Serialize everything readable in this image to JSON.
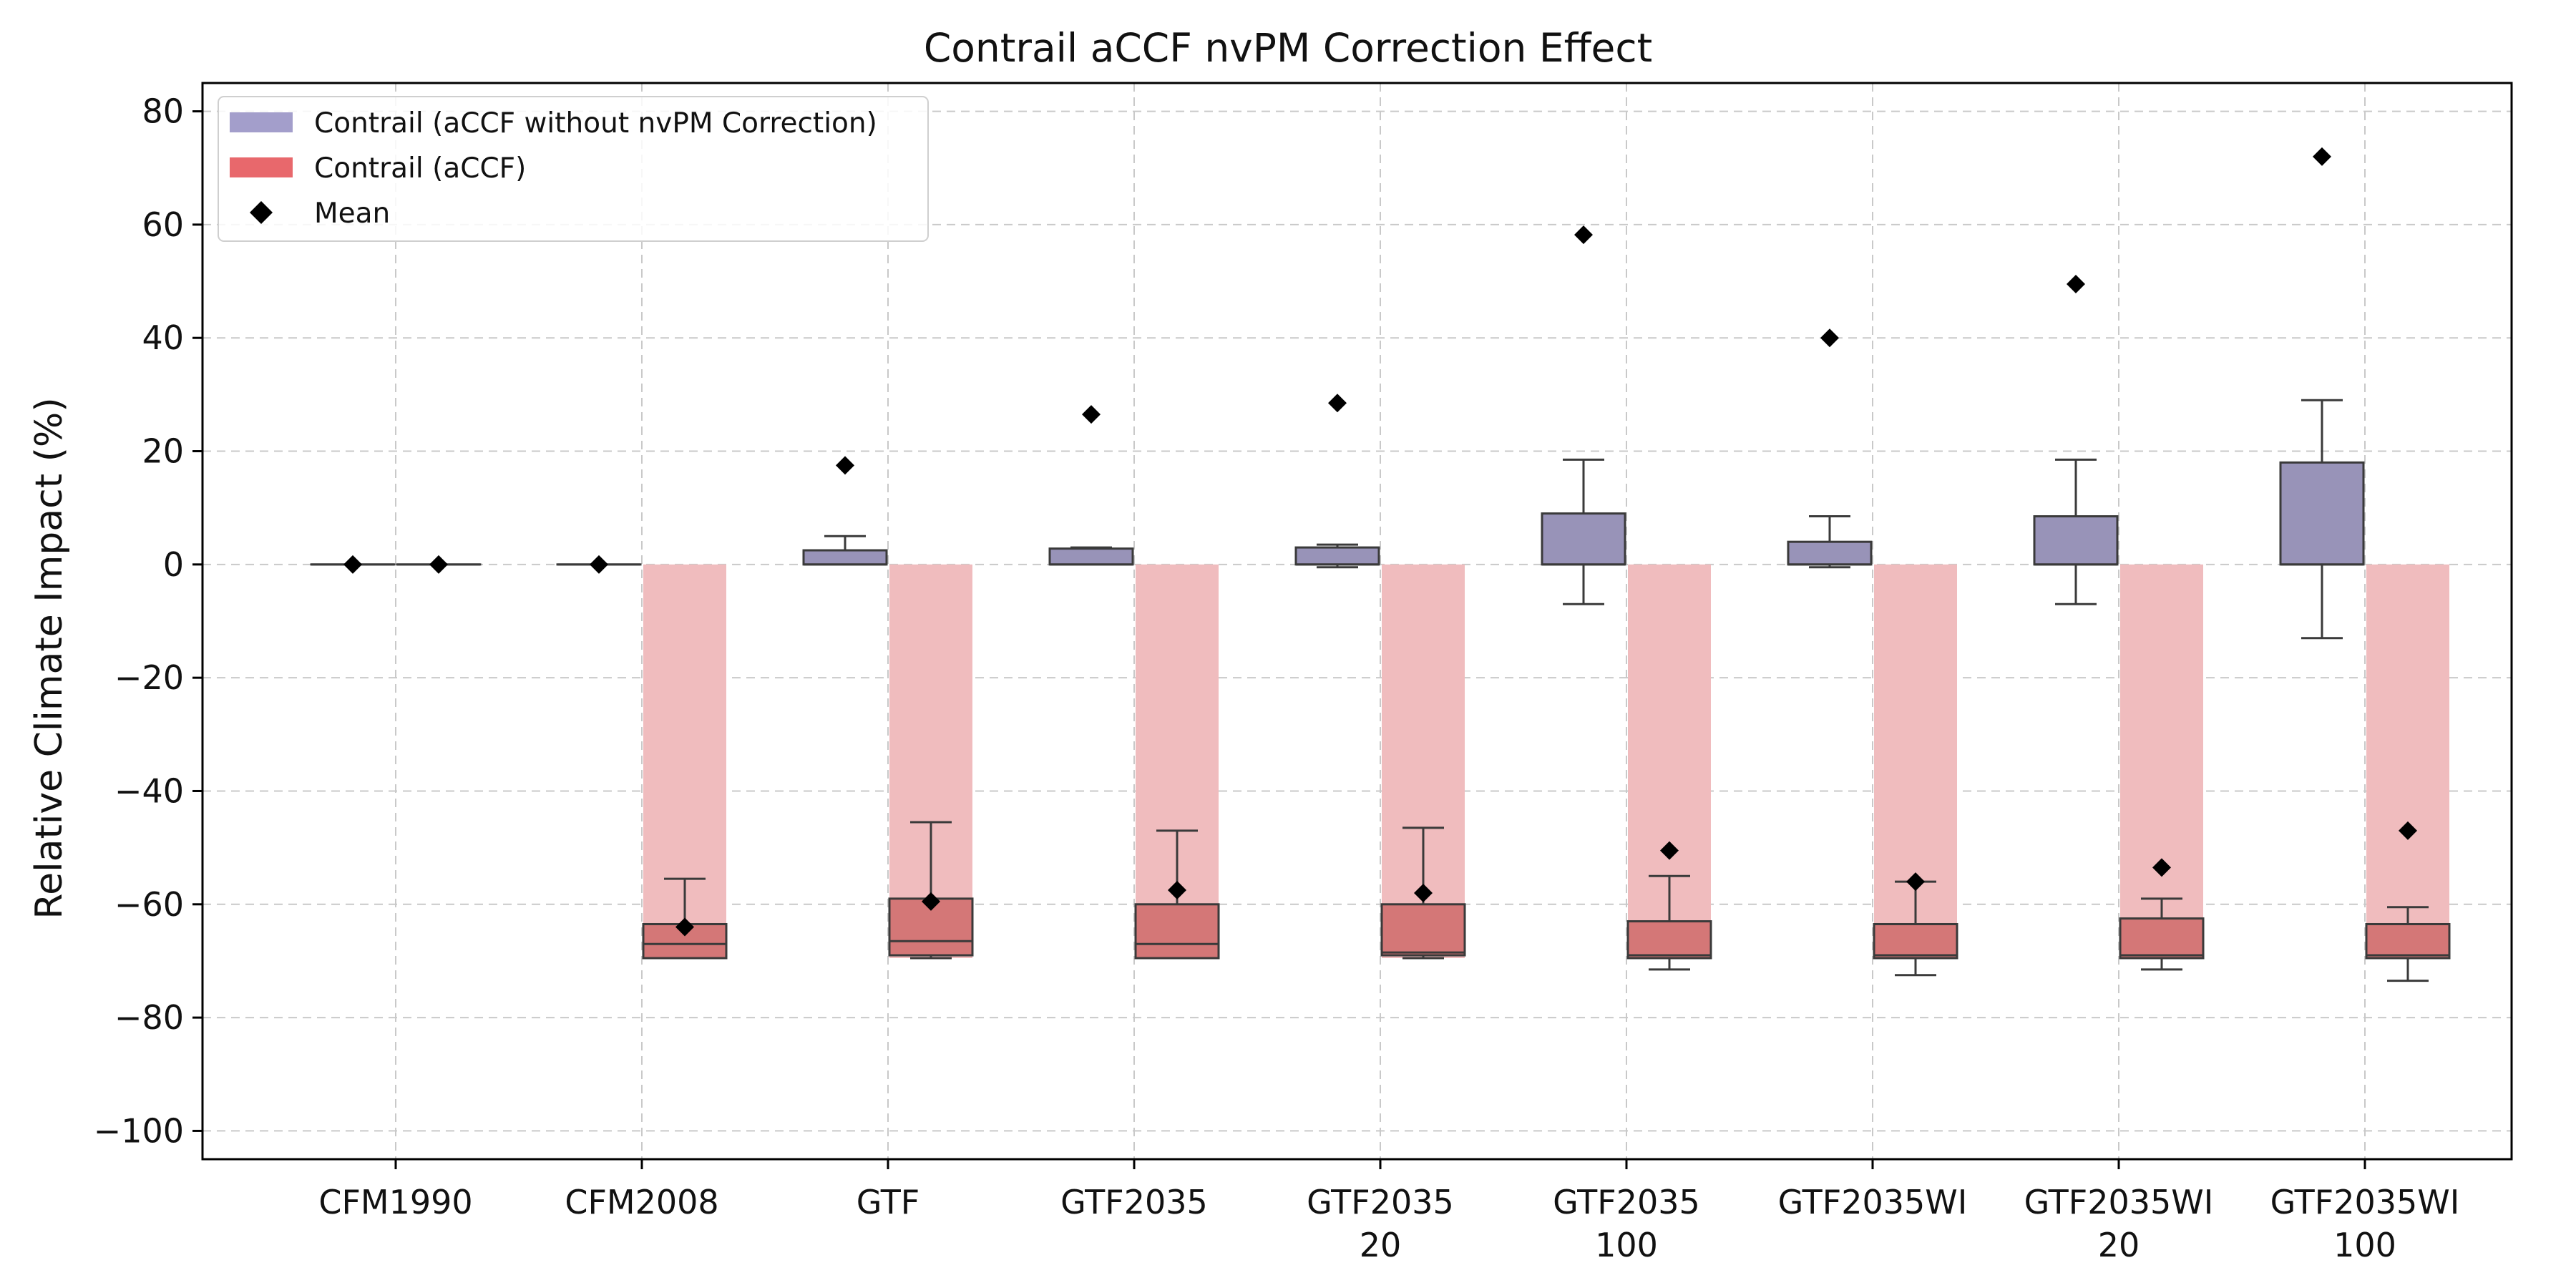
{
  "chart_data": {
    "type": "box",
    "title": "Contrail aCCF nvPM Correction Effect",
    "xlabel": "",
    "ylabel": "Relative Climate Impact (%)",
    "ylim": [
      -105,
      85
    ],
    "yticks": [
      80,
      60,
      40,
      20,
      0,
      -20,
      -40,
      -60,
      -80,
      -100
    ],
    "ytick_labels": [
      "80",
      "60",
      "40",
      "20",
      "0",
      "−20",
      "−40",
      "−60",
      "−80",
      "−100"
    ],
    "grid": true,
    "legend_position": "upper-left",
    "categories": [
      [
        "CFM1990"
      ],
      [
        "CFM2008"
      ],
      [
        "GTF"
      ],
      [
        "GTF2035"
      ],
      [
        "GTF2035",
        "20"
      ],
      [
        "GTF2035",
        "100"
      ],
      [
        "GTF2035WI"
      ],
      [
        "GTF2035WI",
        "20"
      ],
      [
        "GTF2035WI",
        "100"
      ]
    ],
    "series": [
      {
        "name": "Contrail (aCCF without nvPM Correction)",
        "color": "#9893b8",
        "legend_color": "#a39ecb",
        "boxes": [
          {
            "whislo": 0,
            "q1": 0,
            "med": 0,
            "q3": 0,
            "whishi": 0,
            "mean": 0
          },
          {
            "whislo": 0,
            "q1": 0,
            "med": 0,
            "q3": 0,
            "whishi": 0,
            "mean": 0
          },
          {
            "whislo": 0,
            "q1": 0,
            "med": 0,
            "q3": 2.5,
            "whishi": 5,
            "mean": 17.5
          },
          {
            "whislo": 0,
            "q1": 0,
            "med": 0,
            "q3": 2.8,
            "whishi": 3,
            "mean": 26.5
          },
          {
            "whislo": -0.5,
            "q1": 0,
            "med": 0,
            "q3": 3,
            "whishi": 3.5,
            "mean": 28.5
          },
          {
            "whislo": -7,
            "q1": 0,
            "med": 0,
            "q3": 9,
            "whishi": 18.5,
            "mean": 58.2
          },
          {
            "whislo": -0.5,
            "q1": 0,
            "med": 0,
            "q3": 4,
            "whishi": 8.5,
            "mean": 40
          },
          {
            "whislo": -7,
            "q1": 0,
            "med": 0,
            "q3": 8.5,
            "whishi": 18.5,
            "mean": 49.5
          },
          {
            "whislo": -13,
            "q1": 0,
            "med": 0,
            "q3": 18,
            "whishi": 29,
            "mean": 72
          }
        ]
      },
      {
        "name": "Contrail (aCCF)",
        "color": "#d47777",
        "legend_color": "#e8686c",
        "band_color": "#f0bcbe",
        "boxes": [
          {
            "whislo": 0,
            "q1": 0,
            "med": 0,
            "q3": 0,
            "whishi": 0,
            "mean": 0,
            "band": 0
          },
          {
            "whislo": -69.5,
            "q1": -69.5,
            "med": -67,
            "q3": -63.5,
            "whishi": -55.5,
            "mean": -64,
            "band": -69.5
          },
          {
            "whislo": -69.5,
            "q1": -69,
            "med": -66.5,
            "q3": -59,
            "whishi": -45.5,
            "mean": -59.5,
            "band": -69.5
          },
          {
            "whislo": -69.5,
            "q1": -69.5,
            "med": -67,
            "q3": -60,
            "whishi": -47,
            "mean": -57.5,
            "band": -69.5
          },
          {
            "whislo": -69.5,
            "q1": -69,
            "med": -68.5,
            "q3": -60,
            "whishi": -46.5,
            "mean": -58,
            "band": -69.5
          },
          {
            "whislo": -71.5,
            "q1": -69.5,
            "med": -69,
            "q3": -63,
            "whishi": -55,
            "mean": -50.5,
            "band": -69.5
          },
          {
            "whislo": -72.5,
            "q1": -69.5,
            "med": -69,
            "q3": -63.5,
            "whishi": -56,
            "mean": -56,
            "band": -69.5
          },
          {
            "whislo": -71.5,
            "q1": -69.5,
            "med": -69,
            "q3": -62.5,
            "whishi": -59,
            "mean": -53.5,
            "band": -69.5
          },
          {
            "whislo": -73.5,
            "q1": -69.5,
            "med": -69,
            "q3": -63.5,
            "whishi": -60.5,
            "mean": -47,
            "band": -69.5
          }
        ]
      }
    ],
    "legend": [
      {
        "label": "Contrail (aCCF without nvPM Correction)",
        "kind": "patch",
        "series": 0
      },
      {
        "label": "Contrail (aCCF)",
        "kind": "patch",
        "series": 1
      },
      {
        "label": "Mean",
        "kind": "diamond"
      }
    ]
  }
}
